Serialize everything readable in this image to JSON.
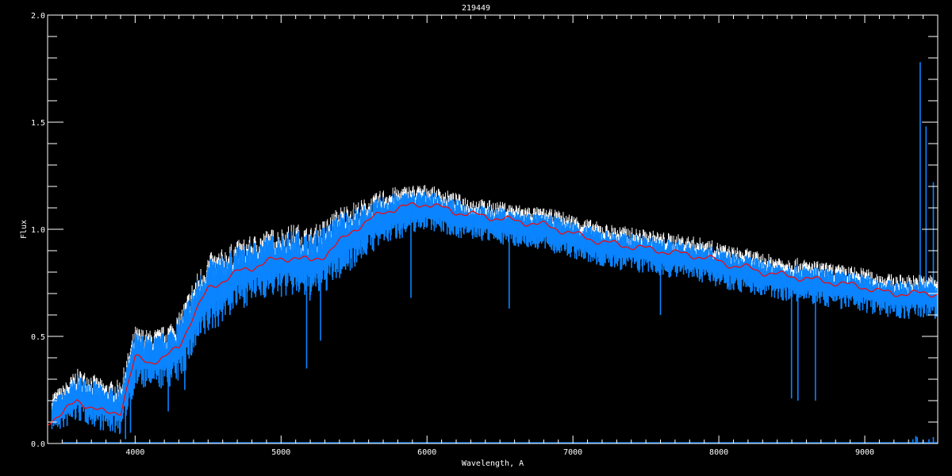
{
  "chart_data": {
    "type": "line",
    "title": "219449",
    "xlabel": "Wavelength, A",
    "ylabel": "Flux",
    "xlim": [
      3400,
      9500
    ],
    "ylim": [
      0.0,
      2.0
    ],
    "xticks": [
      4000,
      5000,
      6000,
      7000,
      8000,
      9000
    ],
    "xtick_labels": [
      "4000",
      "5000",
      "6000",
      "7000",
      "8000",
      "9000"
    ],
    "yticks": [
      0.0,
      0.5,
      1.0,
      1.5,
      2.0
    ],
    "ytick_labels": [
      "0.0",
      "0.5",
      "1.0",
      "1.5",
      "2.0"
    ],
    "grid": false,
    "colors": {
      "background": "#000000",
      "axes": "#ffffff",
      "observed": "#ffffff",
      "spectrum": "#0a84ff",
      "smoothed": "#ff0000"
    },
    "wavelength": [
      3400,
      3500,
      3600,
      3700,
      3800,
      3900,
      4000,
      4100,
      4200,
      4300,
      4400,
      4500,
      4600,
      4700,
      4800,
      4900,
      5000,
      5100,
      5200,
      5300,
      5400,
      5500,
      5600,
      5700,
      5800,
      5900,
      6000,
      6100,
      6200,
      6300,
      6400,
      6500,
      6600,
      6700,
      6800,
      6900,
      7000,
      7100,
      7200,
      7300,
      7400,
      7500,
      7600,
      7700,
      7800,
      7900,
      8000,
      8100,
      8200,
      8300,
      8400,
      8500,
      8600,
      8700,
      8800,
      8900,
      9000,
      9100,
      9200,
      9300,
      9400,
      9500
    ],
    "series": [
      {
        "values_high": [
          0.2,
          0.24,
          0.32,
          0.3,
          0.26,
          0.27,
          0.52,
          0.5,
          0.52,
          0.58,
          0.74,
          0.86,
          0.88,
          0.92,
          0.94,
          0.97,
          0.98,
          1.0,
          0.98,
          1.02,
          1.08,
          1.1,
          1.12,
          1.16,
          1.17,
          1.18,
          1.18,
          1.16,
          1.14,
          1.12,
          1.11,
          1.1,
          1.09,
          1.08,
          1.07,
          1.06,
          1.04,
          1.02,
          1.0,
          0.99,
          0.98,
          0.97,
          0.96,
          0.95,
          0.94,
          0.93,
          0.91,
          0.89,
          0.88,
          0.86,
          0.85,
          0.84,
          0.83,
          0.82,
          0.81,
          0.8,
          0.79,
          0.77,
          0.76,
          0.76,
          0.76,
          0.76
        ],
        "values_low": [
          0.06,
          0.06,
          0.1,
          0.08,
          0.05,
          0.04,
          0.25,
          0.25,
          0.25,
          0.28,
          0.4,
          0.5,
          0.56,
          0.62,
          0.65,
          0.68,
          0.68,
          0.68,
          0.66,
          0.7,
          0.76,
          0.82,
          0.88,
          0.92,
          0.95,
          0.98,
          1.0,
          0.98,
          0.96,
          0.95,
          0.94,
          0.93,
          0.92,
          0.91,
          0.9,
          0.88,
          0.86,
          0.84,
          0.82,
          0.81,
          0.8,
          0.79,
          0.78,
          0.77,
          0.76,
          0.75,
          0.73,
          0.71,
          0.7,
          0.68,
          0.67,
          0.66,
          0.65,
          0.64,
          0.63,
          0.62,
          0.61,
          0.6,
          0.58,
          0.58,
          0.58,
          0.58
        ],
        "features": [
          [
            3934,
            0.02
          ],
          [
            3968,
            0.05
          ],
          [
            4227,
            0.15
          ],
          [
            4340,
            0.25
          ],
          [
            5175,
            0.35
          ],
          [
            5270,
            0.48
          ],
          [
            5890,
            0.68
          ],
          [
            6563,
            0.63
          ],
          [
            7600,
            0.6
          ],
          [
            8498,
            0.21
          ],
          [
            8542,
            0.2
          ],
          [
            8662,
            0.2
          ],
          [
            9380,
            1.78
          ],
          [
            9420,
            1.48
          ],
          [
            9470,
            1.22
          ]
        ]
      },
      {
        "values": [
          0.1,
          0.14,
          0.2,
          0.17,
          0.14,
          0.15,
          0.4,
          0.38,
          0.4,
          0.45,
          0.6,
          0.72,
          0.76,
          0.8,
          0.82,
          0.85,
          0.86,
          0.87,
          0.85,
          0.88,
          0.94,
          1.0,
          1.04,
          1.08,
          1.1,
          1.11,
          1.12,
          1.1,
          1.08,
          1.07,
          1.06,
          1.05,
          1.04,
          1.03,
          1.02,
          1.0,
          0.98,
          0.96,
          0.94,
          0.93,
          0.92,
          0.91,
          0.9,
          0.89,
          0.88,
          0.87,
          0.85,
          0.83,
          0.82,
          0.8,
          0.79,
          0.78,
          0.77,
          0.76,
          0.75,
          0.74,
          0.73,
          0.71,
          0.7,
          0.7,
          0.7,
          0.7
        ]
      }
    ]
  }
}
